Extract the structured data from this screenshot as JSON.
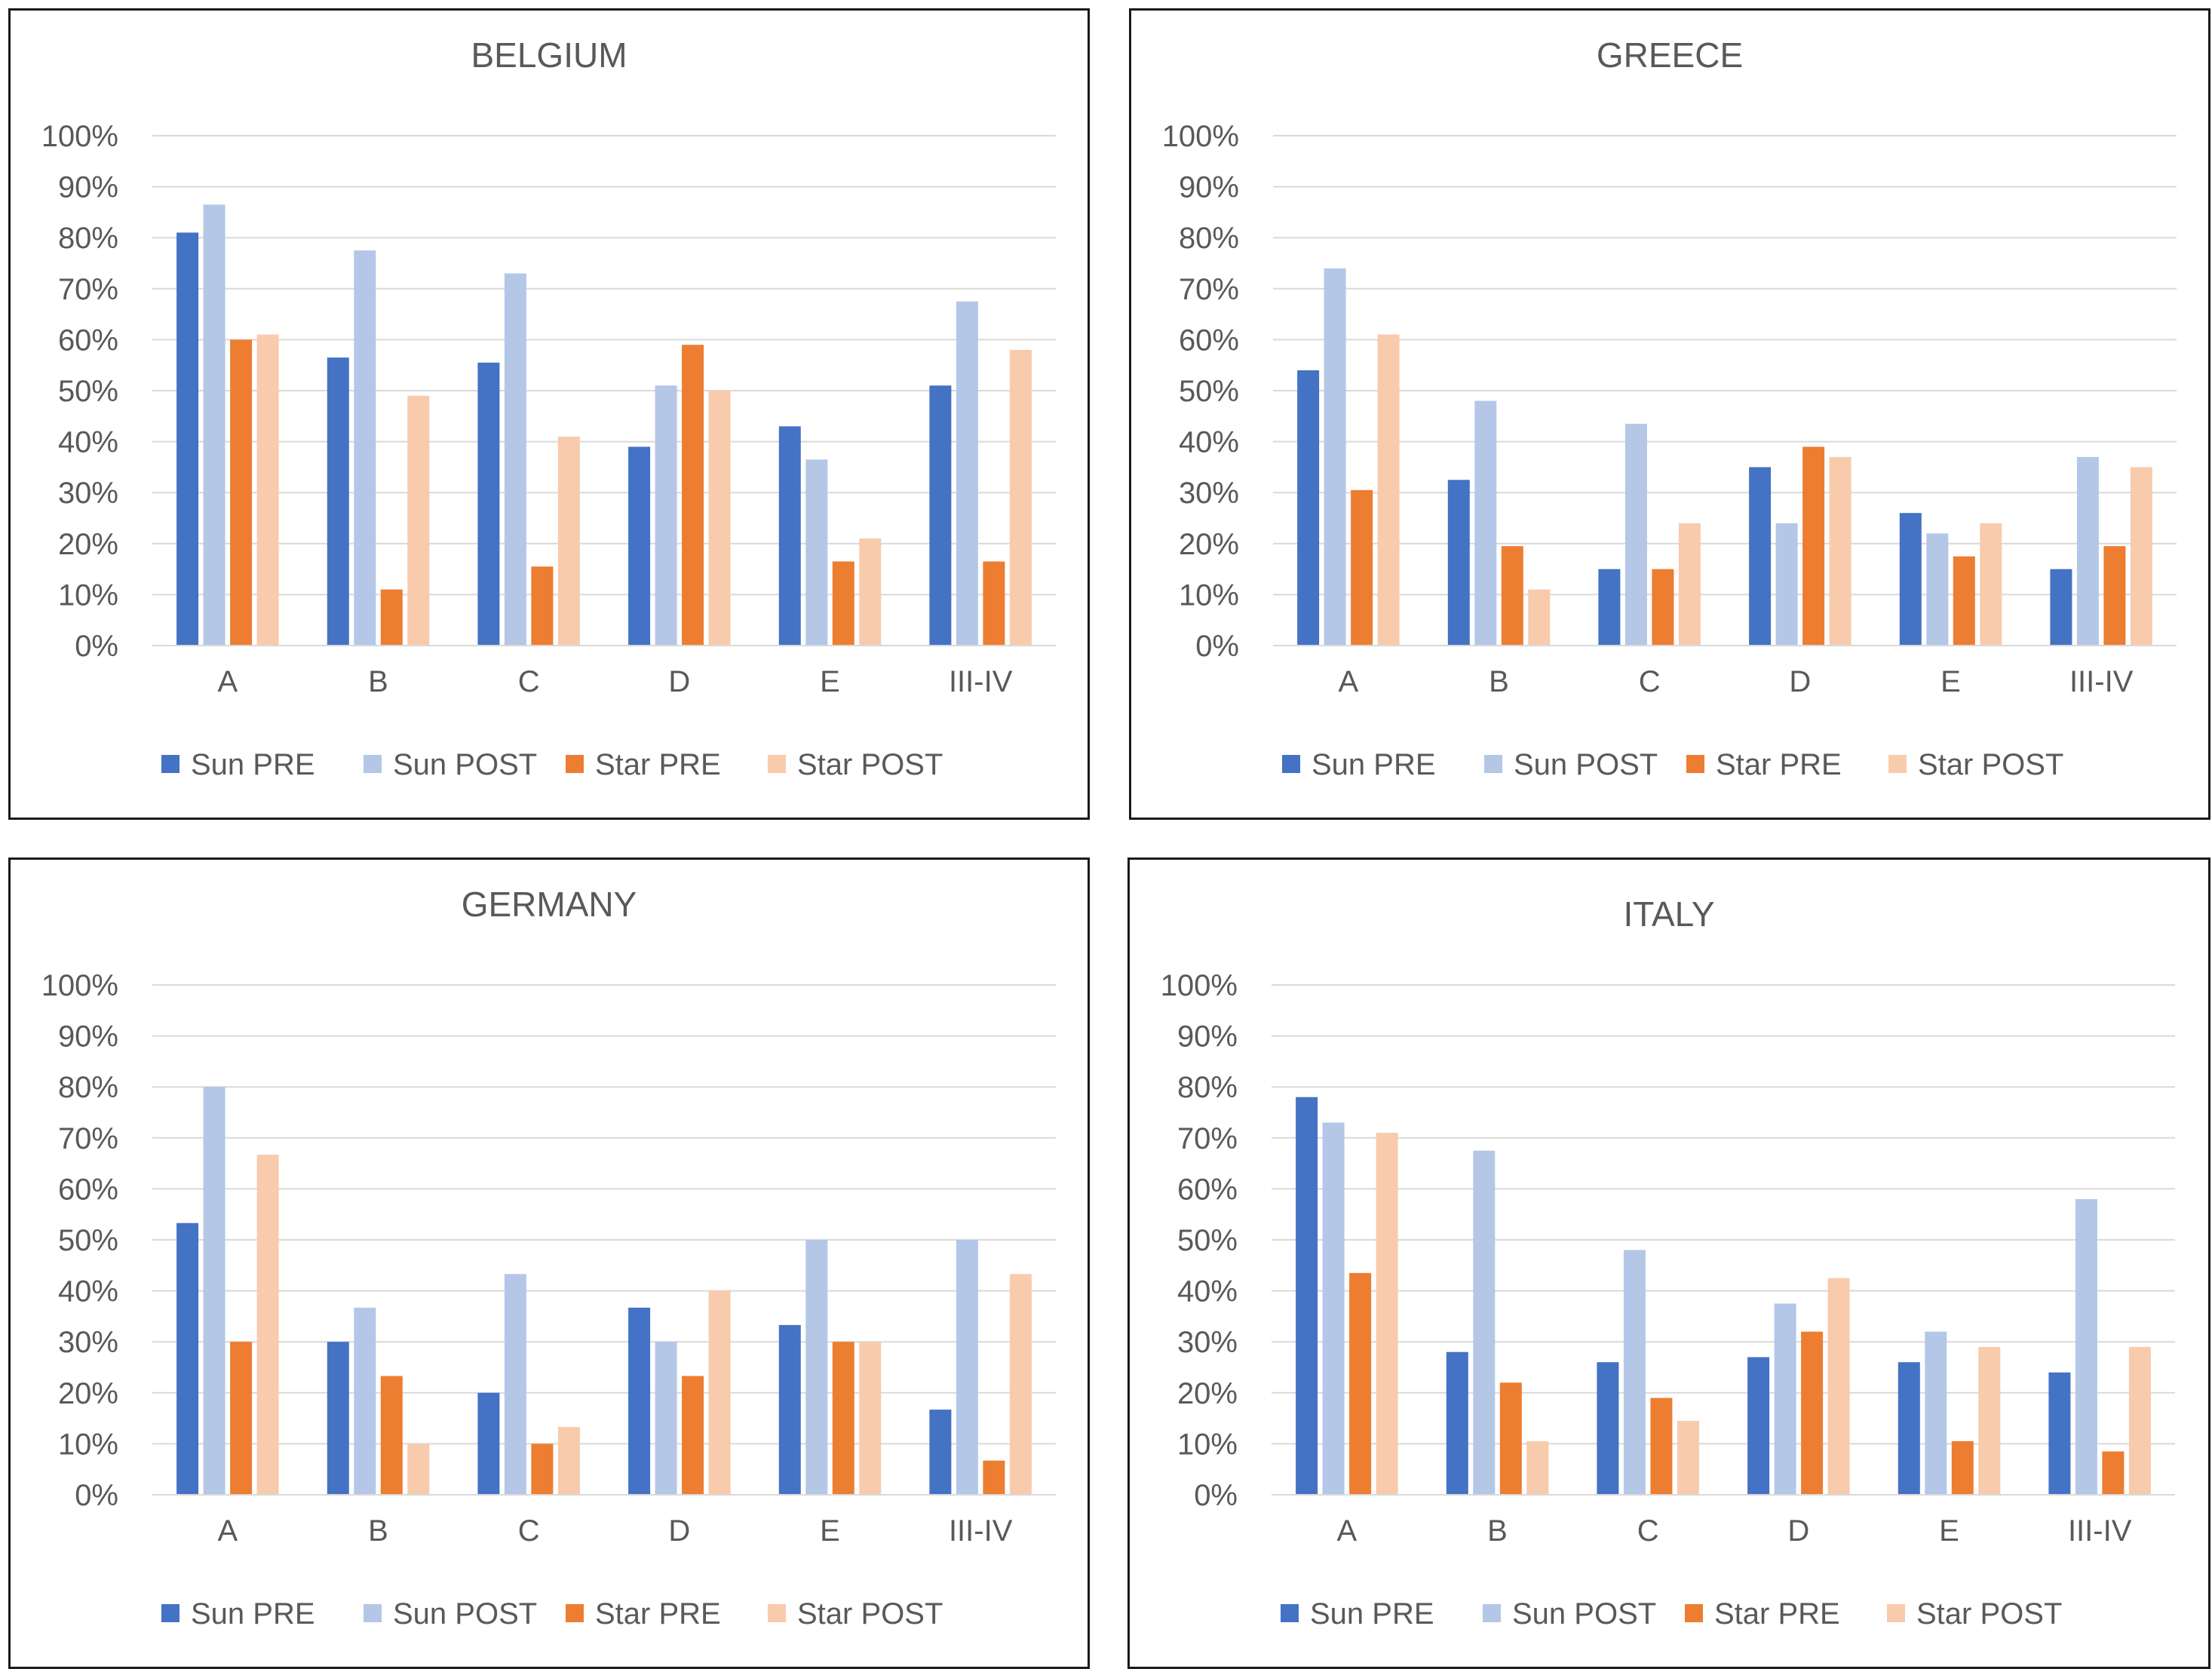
{
  "chart_data": [
    {
      "type": "bar",
      "title": "BELGIUM",
      "categories": [
        "A",
        "B",
        "C",
        "D",
        "E",
        "III-IV"
      ],
      "series": [
        {
          "name": "Sun PRE",
          "values": [
            81,
            56.5,
            55.5,
            39,
            43,
            51
          ]
        },
        {
          "name": "Sun POST",
          "values": [
            86.5,
            77.5,
            73,
            51,
            36.5,
            67.5
          ]
        },
        {
          "name": "Star PRE",
          "values": [
            60,
            11,
            15.5,
            59,
            16.5,
            16.5
          ]
        },
        {
          "name": "Star POST",
          "values": [
            61,
            49,
            41,
            50,
            21,
            58
          ]
        }
      ],
      "ylim": [
        0,
        100
      ],
      "yticks": [
        "0%",
        "10%",
        "20%",
        "30%",
        "40%",
        "50%",
        "60%",
        "70%",
        "80%",
        "90%",
        "100%"
      ],
      "xlabel": "",
      "ylabel": "",
      "grid": true,
      "legend_position": "bottom"
    },
    {
      "type": "bar",
      "title": "GREECE",
      "categories": [
        "A",
        "B",
        "C",
        "D",
        "E",
        "III-IV"
      ],
      "series": [
        {
          "name": "Sun PRE",
          "values": [
            54,
            32.5,
            15,
            35,
            26,
            15
          ]
        },
        {
          "name": "Sun POST",
          "values": [
            74,
            48,
            43.5,
            24,
            22,
            37
          ]
        },
        {
          "name": "Star PRE",
          "values": [
            30.5,
            19.5,
            15,
            39,
            17.5,
            19.5
          ]
        },
        {
          "name": "Star POST",
          "values": [
            61,
            11,
            24,
            37,
            24,
            35
          ]
        }
      ],
      "ylim": [
        0,
        100
      ],
      "yticks": [
        "0%",
        "10%",
        "20%",
        "30%",
        "40%",
        "50%",
        "60%",
        "70%",
        "80%",
        "90%",
        "100%"
      ],
      "xlabel": "",
      "ylabel": "",
      "grid": true,
      "legend_position": "bottom"
    },
    {
      "type": "bar",
      "title": "GERMANY",
      "categories": [
        "A",
        "B",
        "C",
        "D",
        "E",
        "III-IV"
      ],
      "series": [
        {
          "name": "Sun PRE",
          "values": [
            53.3,
            30,
            20,
            36.7,
            33.3,
            16.7
          ]
        },
        {
          "name": "Sun POST",
          "values": [
            80,
            36.7,
            43.3,
            30,
            50,
            50
          ]
        },
        {
          "name": "Star PRE",
          "values": [
            30,
            23.3,
            10,
            23.3,
            30,
            6.7
          ]
        },
        {
          "name": "Star POST",
          "values": [
            66.7,
            10,
            13.3,
            40,
            30,
            43.3
          ]
        }
      ],
      "ylim": [
        0,
        100
      ],
      "yticks": [
        "0%",
        "10%",
        "20%",
        "30%",
        "40%",
        "50%",
        "60%",
        "70%",
        "80%",
        "90%",
        "100%"
      ],
      "xlabel": "",
      "ylabel": "",
      "grid": true,
      "legend_position": "bottom"
    },
    {
      "type": "bar",
      "title": "ITALY",
      "categories": [
        "A",
        "B",
        "C",
        "D",
        "E",
        "III-IV"
      ],
      "series": [
        {
          "name": "Sun PRE",
          "values": [
            78,
            28,
            26,
            27,
            26,
            24
          ]
        },
        {
          "name": "Sun POST",
          "values": [
            73,
            67.5,
            48,
            37.5,
            32,
            58
          ]
        },
        {
          "name": "Star PRE",
          "values": [
            43.5,
            22,
            19,
            32,
            10.5,
            8.5
          ]
        },
        {
          "name": "Star POST",
          "values": [
            71,
            10.5,
            14.5,
            42.5,
            29,
            29
          ]
        }
      ],
      "ylim": [
        0,
        100
      ],
      "yticks": [
        "0%",
        "10%",
        "20%",
        "30%",
        "40%",
        "50%",
        "60%",
        "70%",
        "80%",
        "90%",
        "100%"
      ],
      "xlabel": "",
      "ylabel": "",
      "grid": true,
      "legend_position": "bottom"
    }
  ],
  "colors": {
    "series": [
      "#4472C4",
      "#B4C7E7",
      "#ED7D31",
      "#F8CBAD"
    ],
    "text": "#595959",
    "grid": "#D9D9D9",
    "border": "#1A1A1A"
  }
}
